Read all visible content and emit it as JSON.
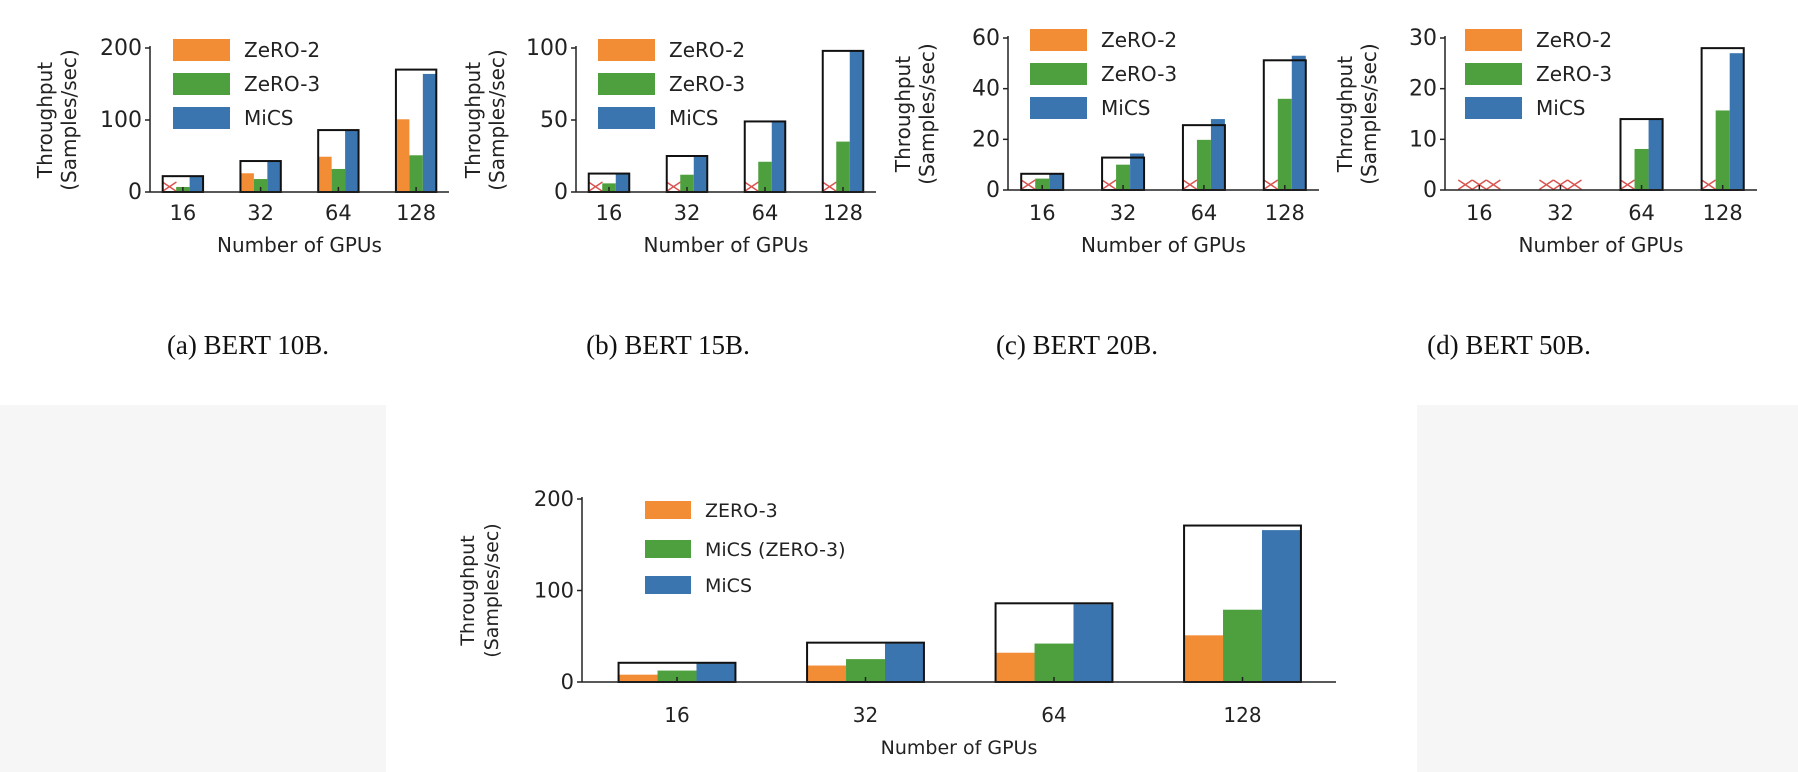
{
  "chart_data": [
    {
      "type": "bar",
      "caption": "(a) BERT 10B.",
      "xlabel": "Number of GPUs",
      "ylabel": [
        "Throughput",
        "(Samples/sec)"
      ],
      "categories": [
        "16",
        "32",
        "64",
        "128"
      ],
      "ylim": [
        0,
        200
      ],
      "yticks": [
        "0",
        "100",
        "200"
      ],
      "legend_position": "top-left",
      "series": [
        {
          "name": "ZeRO-2",
          "color": "#f28c35",
          "values": [
            null,
            26,
            49,
            101
          ]
        },
        {
          "name": "ZeRO-3",
          "color": "#4e9f3d",
          "values": [
            7,
            18,
            32,
            51
          ]
        },
        {
          "name": "MiCS",
          "color": "#3a75b0",
          "values": [
            21,
            42,
            85,
            164
          ]
        }
      ],
      "outline_values": [
        22,
        43,
        86,
        170
      ],
      "oom_marker": "red x"
    },
    {
      "type": "bar",
      "caption": "(b) BERT 15B.",
      "xlabel": "Number of GPUs",
      "ylabel": [
        "Throughput",
        "(Samples/sec)"
      ],
      "categories": [
        "16",
        "32",
        "64",
        "128"
      ],
      "ylim": [
        0,
        100
      ],
      "yticks": [
        "0",
        "50",
        "100"
      ],
      "legend_position": "top-left",
      "series": [
        {
          "name": "ZeRO-2",
          "color": "#f28c35",
          "values": [
            null,
            null,
            null,
            null
          ]
        },
        {
          "name": "ZeRO-3",
          "color": "#4e9f3d",
          "values": [
            6,
            12,
            21,
            35
          ]
        },
        {
          "name": "MiCS",
          "color": "#3a75b0",
          "values": [
            12.5,
            25,
            49,
            98
          ]
        }
      ],
      "outline_values": [
        12.8,
        25,
        49,
        98
      ],
      "oom_marker": "red x"
    },
    {
      "type": "bar",
      "caption": "(c) BERT 20B.",
      "xlabel": "Number of GPUs",
      "ylabel": [
        "Throughput",
        "(Samples/sec)"
      ],
      "categories": [
        "16",
        "32",
        "64",
        "128"
      ],
      "ylim": [
        0,
        60
      ],
      "yticks": [
        "0",
        "20",
        "40",
        "60"
      ],
      "legend_position": "top-left",
      "series": [
        {
          "name": "ZeRO-2",
          "color": "#f28c35",
          "values": [
            null,
            null,
            null,
            null
          ]
        },
        {
          "name": "ZeRO-3",
          "color": "#4e9f3d",
          "values": [
            4.5,
            10,
            19.8,
            36
          ]
        },
        {
          "name": "MiCS",
          "color": "#3a75b0",
          "values": [
            6.4,
            14.4,
            28,
            53
          ]
        }
      ],
      "outline_values": [
        6.4,
        12.8,
        25.6,
        51.2
      ],
      "oom_marker": "red x"
    },
    {
      "type": "bar",
      "caption": "(d) BERT 50B.",
      "xlabel": "Number of GPUs",
      "ylabel": [
        "Throughput",
        "(Samples/sec)"
      ],
      "categories": [
        "16",
        "32",
        "64",
        "128"
      ],
      "ylim": [
        0,
        30
      ],
      "yticks": [
        "0",
        "10",
        "20",
        "30"
      ],
      "legend_position": "top-left",
      "series": [
        {
          "name": "ZeRO-2",
          "color": "#f28c35",
          "values": [
            null,
            null,
            null,
            null
          ]
        },
        {
          "name": "ZeRO-3",
          "color": "#4e9f3d",
          "values": [
            null,
            null,
            8.1,
            15.7
          ]
        },
        {
          "name": "MiCS",
          "color": "#3a75b0",
          "values": [
            null,
            null,
            14,
            27
          ]
        }
      ],
      "outline_values": [
        null,
        null,
        14,
        28
      ],
      "oom_marker": "red x"
    },
    {
      "type": "bar",
      "xlabel": "Number of GPUs",
      "ylabel": [
        "Throughput",
        "(Samples/sec)"
      ],
      "categories": [
        "16",
        "32",
        "64",
        "128"
      ],
      "ylim": [
        0,
        200
      ],
      "yticks": [
        "0",
        "100",
        "200"
      ],
      "legend_position": "top-left",
      "series": [
        {
          "name": "ZERO-3",
          "color": "#f28c35",
          "values": [
            8,
            18,
            32,
            51
          ]
        },
        {
          "name": "MiCS (ZERO-3)",
          "color": "#4e9f3d",
          "values": [
            12.5,
            25,
            42,
            79
          ]
        },
        {
          "name": "MiCS",
          "color": "#3a75b0",
          "values": [
            21,
            42,
            85,
            166
          ]
        }
      ],
      "outline_values": [
        21,
        43,
        86,
        171
      ]
    }
  ]
}
